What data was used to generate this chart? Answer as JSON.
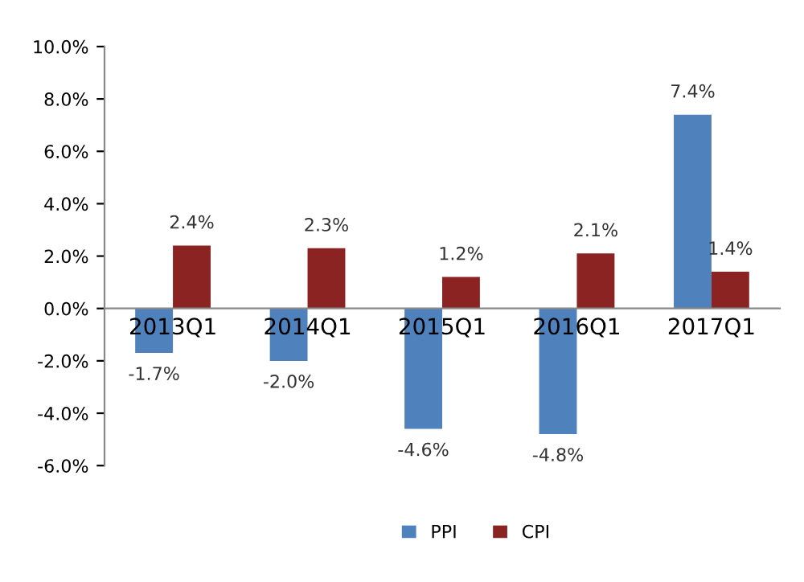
{
  "chart_data": {
    "type": "bar",
    "categories": [
      "2013Q1",
      "2014Q1",
      "2015Q1",
      "2016Q1",
      "2017Q1"
    ],
    "series": [
      {
        "name": "PPI",
        "color": "#4f81bd",
        "values": [
          -1.7,
          -2.0,
          -4.6,
          -4.8,
          7.4
        ],
        "value_labels": [
          "-1.7%",
          "-2.0%",
          "-4.6%",
          "-4.8%",
          "7.4%"
        ]
      },
      {
        "name": "CPI",
        "color": "#8b2323",
        "values": [
          2.4,
          2.3,
          1.2,
          2.1,
          1.4
        ],
        "value_labels": [
          "2.4%",
          "2.3%",
          "1.2%",
          "2.1%",
          "1.4%"
        ]
      }
    ],
    "ylim": [
      -6,
      10
    ],
    "yticks": [
      {
        "value": -6,
        "label": "-6.0%"
      },
      {
        "value": -4,
        "label": "-4.0%"
      },
      {
        "value": -2,
        "label": "-2.0%"
      },
      {
        "value": 0,
        "label": "0.0%"
      },
      {
        "value": 2,
        "label": "2.0%"
      },
      {
        "value": 4,
        "label": "4.0%"
      },
      {
        "value": 6,
        "label": "6.0%"
      },
      {
        "value": 8,
        "label": "8.0%"
      },
      {
        "value": 10,
        "label": "10.0%"
      }
    ],
    "grid": false,
    "legend": "bottom"
  }
}
